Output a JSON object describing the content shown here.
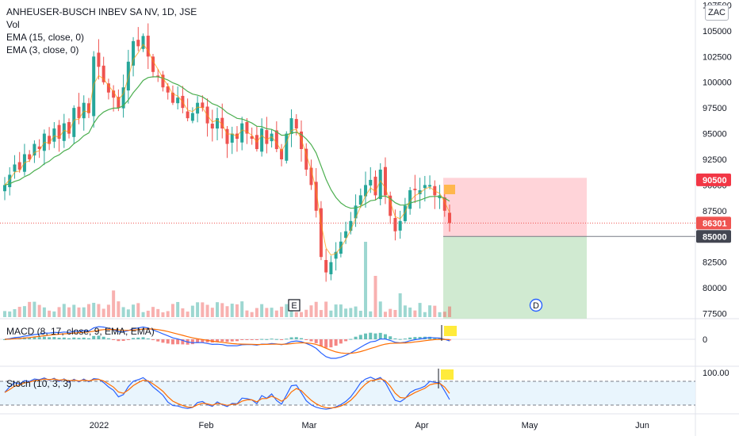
{
  "legend": {
    "title": "ANHEUSER-BUSCH INBEV SA NV, 1D, JSE",
    "vol": "Vol",
    "ema15": "EMA (15, close, 0)",
    "ema3": "EMA (3, close, 0)"
  },
  "currency": "ZAC",
  "macd_label": "MACD (8, 17, close, 9, EMA, EMA)",
  "stoch_label": "Stoch (10, 3, 3)",
  "colors": {
    "up": "#26a69a",
    "down": "#ef5350",
    "ema15": "#4caf50",
    "ema3": "#ff9800",
    "macd": "#2962ff",
    "signal": "#ff6d00",
    "stoch_k": "#2962ff",
    "stoch_d": "#ff6d00",
    "stop_zone": "#ffcdd2",
    "target_zone": "#c8e6c9"
  },
  "chart_data": [
    {
      "type": "candlestick",
      "title": "ANHEUSER-BUSCH INBEV SA NV, 1D, JSE",
      "y_ticks": [
        "107500",
        "105000",
        "102500",
        "100000",
        "97500",
        "95000",
        "92500",
        "90000",
        "87500",
        "85000",
        "82500",
        "80000",
        "77500"
      ],
      "ylim": [
        77000,
        108000
      ],
      "x_labels": [
        "2022",
        "Feb",
        "Mar",
        "Apr",
        "May",
        "Jun"
      ],
      "price_tags": {
        "stop": "90500",
        "last": "86301",
        "entry": "85000"
      },
      "markers": {
        "earnings": "E",
        "dividend": "D"
      },
      "close_path": [
        90000,
        91000,
        92000,
        91500,
        93000,
        92500,
        94000,
        93500,
        95000,
        94000,
        95500,
        94500,
        96000,
        95000,
        97500,
        96500,
        98000,
        97000,
        102500,
        101500,
        100000,
        99000,
        98500,
        97500,
        99500,
        102000,
        104000,
        103500,
        104500,
        102500,
        101000,
        100500,
        99500,
        99000,
        98000,
        98500,
        97500,
        96500,
        97000,
        98000,
        97500,
        96000,
        95500,
        96500,
        95500,
        94000,
        95000,
        94500,
        96000,
        95000,
        94500,
        93500,
        95500,
        94000,
        95000,
        93500,
        92500,
        95000,
        96500,
        95500,
        93500,
        91500,
        90000,
        87500,
        83000,
        81500,
        82500,
        83500,
        84500,
        85500,
        86500,
        88000,
        89000,
        90000,
        90500,
        89000,
        91500,
        89000,
        87000,
        85500,
        86500,
        88000,
        89500,
        89500,
        89500,
        90000,
        90000,
        89000,
        89000,
        87500,
        86300
      ]
    },
    {
      "type": "bar+line",
      "title": "MACD (8, 17, close, 9, EMA, EMA)",
      "y_ticks": [
        "0"
      ]
    },
    {
      "type": "line",
      "title": "Stoch (10, 3, 3)",
      "y_ticks": [
        "100.00"
      ],
      "ylim": [
        0,
        100
      ]
    }
  ]
}
